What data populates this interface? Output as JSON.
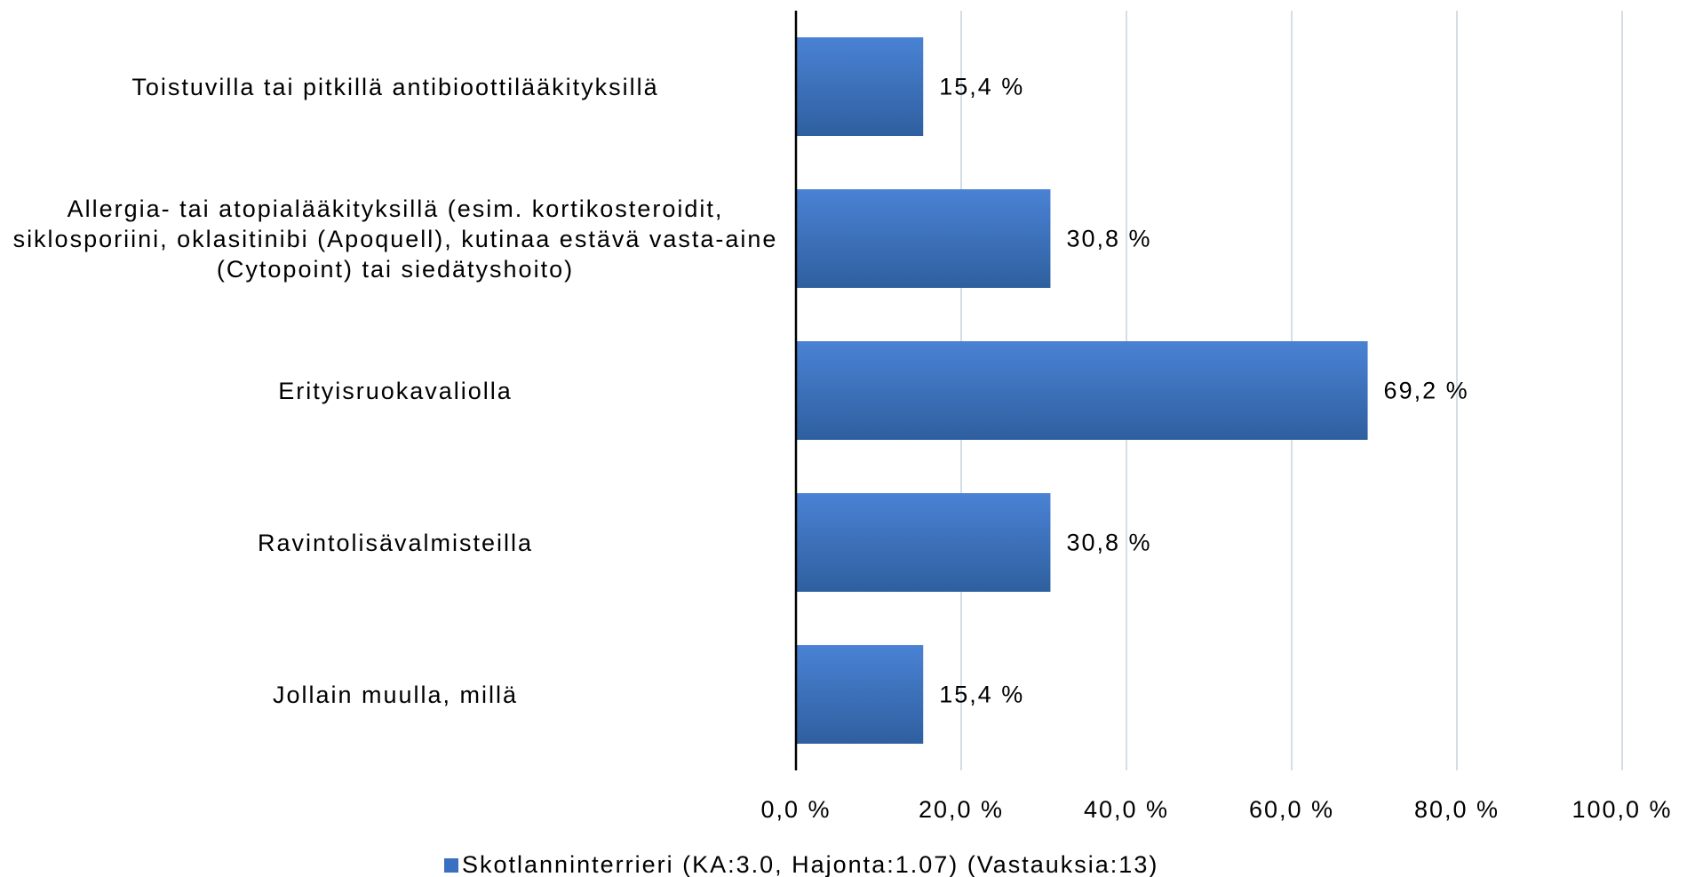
{
  "chart_data": {
    "type": "hbar",
    "categories": [
      "Toistuvilla tai pitkillä antibioottilääkityksillä",
      "Allergia- tai atopialääkityksillä (esim. kortikosteroidit, siklosporiini, oklasitinibi (Apoquell), kutinaa estävä vasta-aine (Cytopoint) tai siedätyshoito)",
      "Erityisruokavaliolla",
      "Ravintolisävalmisteilla",
      "Jollain muulla, millä"
    ],
    "series": [
      {
        "name": "Skotlanninterrieri (KA:3.0, Hajonta:1.07) (Vastauksia:13)",
        "color": "#3a70c2",
        "values": [
          15.4,
          30.8,
          69.2,
          30.8,
          15.4
        ],
        "value_labels": [
          "15,4 %",
          "30,8 %",
          "69,2 %",
          "30,8 %",
          "15,4 %"
        ]
      }
    ],
    "xlim": [
      0,
      100
    ],
    "xticks": [
      {
        "value": 0,
        "label": "0,0 %"
      },
      {
        "value": 20,
        "label": "20,0 %"
      },
      {
        "value": 40,
        "label": "40,0 %"
      },
      {
        "value": 60,
        "label": "60,0 %"
      },
      {
        "value": 80,
        "label": "80,0 %"
      },
      {
        "value": 100,
        "label": "100,0 %"
      }
    ],
    "grid": true,
    "legend": "bottom"
  }
}
